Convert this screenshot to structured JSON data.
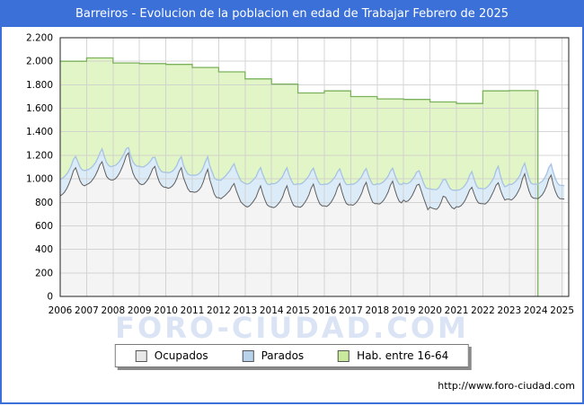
{
  "title": "Barreiros - Evolucion de la poblacion en edad de Trabajar Febrero de 2025",
  "watermark": "FORO-CIUDAD.COM",
  "footer": {
    "url": "http://www.foro-ciudad.com"
  },
  "legend": {
    "items": [
      {
        "label": "Ocupados",
        "color": "#e8e8e8"
      },
      {
        "label": "Parados",
        "color": "#b7d3ec"
      },
      {
        "label": "Hab. entre 16-64",
        "color": "#c9ea9c"
      }
    ]
  },
  "colors": {
    "titlebar": "#3b70d8",
    "frame_border": "#3b70d8",
    "plot_frame": "#222222",
    "gridline": "#cccccc",
    "ocupados_fill": "#f4f4f4",
    "ocupados_line": "#5f5f5f",
    "parados_fill": "#dcebf8",
    "parados_line": "#a6c3e3",
    "hab_fill": "#e2f5c6",
    "hab_line": "#7cb25c"
  },
  "chart_data": {
    "type": "area",
    "title": "Barreiros - Evolucion de la poblacion en edad de Trabajar Febrero de 2025",
    "xlabel": "",
    "ylabel": "",
    "ylim": [
      0,
      2200
    ],
    "grid": true,
    "legend_position": "bottom",
    "x_ticks": [
      "2006",
      "2007",
      "2008",
      "2009",
      "2010",
      "2011",
      "2012",
      "2013",
      "2014",
      "2015",
      "2016",
      "2017",
      "2018",
      "2019",
      "2020",
      "2021",
      "2022",
      "2023",
      "2024",
      "2025"
    ],
    "y_tick_values": [
      0,
      200,
      400,
      600,
      800,
      1000,
      1200,
      1400,
      1600,
      1800,
      2000,
      2200
    ],
    "y_tick_labels": [
      "0",
      "200",
      "400",
      "600",
      "800",
      "1.000",
      "1.200",
      "1.400",
      "1.600",
      "1.800",
      "2.000",
      "2.200"
    ],
    "stacking_note": "Parados is stacked on top of Ocupados; Hab. entre 16-64 is a yearly stepped area behind them ending Feb 2024",
    "series": [
      {
        "name": "Ocupados",
        "unit": "persons",
        "monthly_by_year": {
          "2006": [
            855,
            868,
            888,
            918,
            958,
            1008,
            1068,
            1095,
            1040,
            982,
            952,
            940
          ],
          "2007": [
            950,
            960,
            975,
            1000,
            1030,
            1070,
            1118,
            1145,
            1080,
            1022,
            1000,
            990
          ],
          "2008": [
            990,
            1000,
            1020,
            1052,
            1092,
            1140,
            1198,
            1220,
            1120,
            1050,
            1010,
            985
          ],
          "2009": [
            960,
            950,
            955,
            975,
            1000,
            1040,
            1085,
            1105,
            1030,
            975,
            945,
            930
          ],
          "2010": [
            928,
            920,
            925,
            940,
            965,
            1005,
            1060,
            1094,
            1010,
            960,
            915,
            890
          ],
          "2011": [
            890,
            885,
            890,
            905,
            930,
            975,
            1035,
            1081,
            990,
            930,
            870,
            840
          ],
          "2012": [
            840,
            830,
            845,
            860,
            880,
            900,
            935,
            960,
            900,
            850,
            805,
            785
          ],
          "2013": [
            770,
            760,
            770,
            790,
            815,
            845,
            895,
            940,
            875,
            820,
            780,
            765
          ],
          "2014": [
            760,
            755,
            765,
            785,
            810,
            845,
            900,
            941,
            870,
            815,
            775,
            763
          ],
          "2015": [
            763,
            758,
            770,
            795,
            825,
            865,
            920,
            955,
            885,
            825,
            785,
            770
          ],
          "2016": [
            770,
            765,
            778,
            800,
            830,
            870,
            925,
            960,
            890,
            830,
            790,
            778
          ],
          "2017": [
            780,
            775,
            788,
            810,
            840,
            880,
            935,
            970,
            900,
            842,
            800,
            788
          ],
          "2018": [
            790,
            785,
            798,
            820,
            850,
            890,
            945,
            980,
            910,
            850,
            810,
            795
          ],
          "2019": [
            820,
            805,
            812,
            832,
            862,
            902,
            945,
            954,
            900,
            840,
            790,
            737
          ],
          "2020": [
            760,
            750,
            745,
            740,
            760,
            800,
            852,
            845,
            810,
            780,
            755,
            745
          ],
          "2021": [
            763,
            760,
            770,
            790,
            820,
            860,
            905,
            928,
            875,
            825,
            795,
            789
          ],
          "2022": [
            789,
            785,
            800,
            825,
            860,
            900,
            945,
            966,
            905,
            855,
            820,
            827
          ],
          "2023": [
            827,
            820,
            835,
            858,
            890,
            930,
            1000,
            1043,
            960,
            895,
            850,
            835
          ],
          "2024": [
            835,
            830,
            845,
            865,
            895,
            940,
            1000,
            1031,
            950,
            890,
            850,
            830
          ],
          "2025": [
            830,
            827
          ]
        }
      },
      {
        "name": "Parados",
        "unit": "persons",
        "monthly_by_year": {
          "2006": [
            140,
            137,
            132,
            124,
            114,
            104,
            97,
            95,
            106,
            118,
            124,
            130
          ],
          "2007": [
            124,
            121,
            117,
            112,
            107,
            103,
            100,
            110,
            114,
            118,
            114,
            112
          ],
          "2008": [
            120,
            114,
            108,
            99,
            88,
            74,
            58,
            46,
            76,
            96,
            110,
            122
          ],
          "2009": [
            148,
            150,
            147,
            140,
            129,
            112,
            95,
            78,
            100,
            112,
            118,
            126
          ],
          "2010": [
            128,
            132,
            130,
            126,
            120,
            110,
            100,
            94,
            105,
            112,
            126,
            141
          ],
          "2011": [
            141,
            145,
            143,
            138,
            132,
            122,
            112,
            107,
            118,
            128,
            140,
            152
          ],
          "2012": [
            150,
            158,
            160,
            162,
            165,
            168,
            165,
            168,
            170,
            175,
            180,
            185
          ],
          "2013": [
            190,
            195,
            192,
            188,
            182,
            175,
            168,
            155,
            165,
            172,
            178,
            185
          ],
          "2014": [
            200,
            202,
            198,
            192,
            185,
            175,
            160,
            153,
            162,
            170,
            178,
            188
          ],
          "2015": [
            195,
            197,
            193,
            186,
            176,
            162,
            145,
            135,
            150,
            160,
            170,
            180
          ],
          "2016": [
            185,
            188,
            184,
            176,
            166,
            152,
            135,
            125,
            140,
            152,
            162,
            172
          ],
          "2017": [
            175,
            178,
            174,
            166,
            156,
            142,
            126,
            116,
            130,
            142,
            152,
            162
          ],
          "2018": [
            168,
            170,
            166,
            158,
            148,
            134,
            120,
            110,
            124,
            136,
            146,
            156
          ],
          "2019": [
            146,
            152,
            149,
            142,
            132,
            120,
            112,
            115,
            120,
            126,
            136,
            179
          ],
          "2020": [
            156,
            160,
            165,
            168,
            165,
            158,
            140,
            150,
            148,
            140,
            150,
            158
          ],
          "2021": [
            140,
            145,
            142,
            136,
            128,
            118,
            125,
            133,
            125,
            120,
            125,
            130
          ],
          "2022": [
            127,
            132,
            130,
            125,
            118,
            110,
            125,
            141,
            120,
            110,
            112,
            114
          ],
          "2023": [
            127,
            132,
            128,
            122,
            114,
            105,
            95,
            89,
            100,
            105,
            112,
            119
          ],
          "2024": [
            120,
            125,
            122,
            116,
            110,
            102,
            98,
            94,
            105,
            110,
            112,
            114
          ],
          "2025": [
            115,
            114
          ]
        }
      },
      {
        "name": "Hab. entre 16-64",
        "unit": "persons",
        "yearly": {
          "2006": 2000,
          "2007": 2028,
          "2008": 1985,
          "2009": 1980,
          "2010": 1973,
          "2011": 1947,
          "2012": 1910,
          "2013": 1850,
          "2014": 1806,
          "2015": 1730,
          "2016": 1748,
          "2017": 1700,
          "2018": 1680,
          "2019": 1675,
          "2020": 1654,
          "2021": 1641,
          "2022": 1748,
          "2023": 1750
        },
        "end_t": 2024.083
      }
    ]
  }
}
